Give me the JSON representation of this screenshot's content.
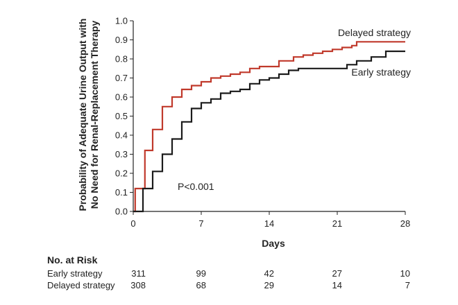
{
  "chart_data": {
    "type": "line",
    "step": true,
    "xlabel": "Days",
    "ylabel_lines": [
      "Probability of Adequate Urine Output with",
      "No Need for Renal-Replacement Therapy"
    ],
    "xlim": [
      0,
      28
    ],
    "ylim": [
      0,
      1.0
    ],
    "xticks": [
      0,
      7,
      14,
      21,
      28
    ],
    "xtick_labels": [
      "0",
      "7",
      "14",
      "21",
      "28"
    ],
    "yticks": [
      0,
      0.1,
      0.2,
      0.3,
      0.4,
      0.5,
      0.6,
      0.7,
      0.8,
      0.9,
      1.0
    ],
    "ytick_labels": [
      "0.0",
      "0.1",
      "0.2",
      "0.3",
      "0.4",
      "0.5",
      "0.6",
      "0.7",
      "0.8",
      "0.9",
      "1.0"
    ],
    "annotation": "P<0.001",
    "series": [
      {
        "name": "Delayed strategy",
        "color": "#c0392b",
        "x": [
          0,
          0.2,
          1.2,
          2.0,
          3.0,
          4.0,
          5.0,
          6.0,
          7.0,
          8.0,
          9.0,
          10.0,
          11.0,
          12.0,
          13.0,
          15.0,
          16.5,
          17.5,
          18.5,
          19.5,
          20.5,
          21.5,
          22.5,
          23.0,
          28.0
        ],
        "y": [
          0.0,
          0.12,
          0.32,
          0.43,
          0.55,
          0.6,
          0.64,
          0.66,
          0.68,
          0.7,
          0.71,
          0.72,
          0.73,
          0.75,
          0.76,
          0.79,
          0.81,
          0.82,
          0.83,
          0.84,
          0.85,
          0.86,
          0.87,
          0.89,
          0.89
        ]
      },
      {
        "name": "Early strategy",
        "color": "#1a1a1a",
        "x": [
          0,
          1.0,
          2.0,
          3.0,
          4.0,
          5.0,
          6.0,
          7.0,
          8.0,
          9.0,
          10.0,
          11.0,
          12.0,
          13.0,
          14.0,
          15.0,
          16.0,
          17.0,
          22.0,
          23.0,
          24.5,
          26.0,
          28.0
        ],
        "y": [
          0.0,
          0.12,
          0.21,
          0.3,
          0.38,
          0.47,
          0.54,
          0.57,
          0.59,
          0.62,
          0.63,
          0.64,
          0.67,
          0.69,
          0.7,
          0.72,
          0.74,
          0.75,
          0.77,
          0.79,
          0.81,
          0.84,
          0.84
        ]
      }
    ],
    "risk_table": {
      "title": "No. at Risk",
      "rows": [
        {
          "label": "Early strategy",
          "values": [
            "311",
            "99",
            "42",
            "27",
            "10"
          ]
        },
        {
          "label": "Delayed strategy",
          "values": [
            "308",
            "68",
            "29",
            "14",
            "7"
          ]
        }
      ]
    }
  }
}
